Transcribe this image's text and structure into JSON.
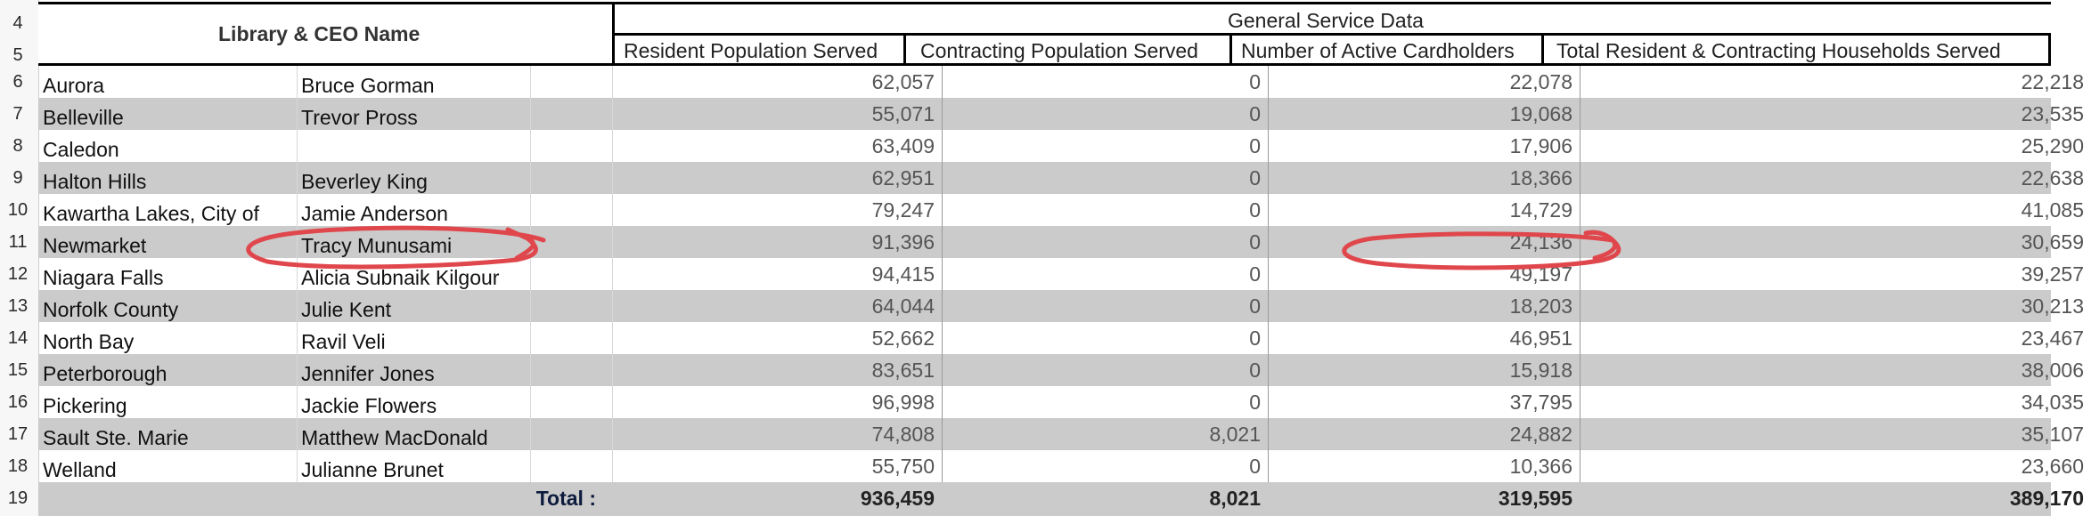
{
  "sheet": {
    "header": {
      "library_ceo_label": "Library & CEO Name",
      "group_label": "General Service Data",
      "columns": [
        "Resident Population Served",
        "Contracting Population Served",
        "Number of Active Cardholders",
        "Total Resident & Contracting Households Served"
      ],
      "row_numbers": [
        "4",
        "5"
      ]
    },
    "rows": [
      {
        "n": "6",
        "library": "Aurora",
        "ceo": "Bruce Gorman",
        "resident": "62,057",
        "contracting": "0",
        "cardholders": "22,078",
        "households": "22,218"
      },
      {
        "n": "7",
        "library": "Belleville",
        "ceo": "Trevor Pross",
        "resident": "55,071",
        "contracting": "0",
        "cardholders": "19,068",
        "households": "23,535"
      },
      {
        "n": "8",
        "library": "Caledon",
        "ceo": "",
        "resident": "63,409",
        "contracting": "0",
        "cardholders": "17,906",
        "households": "25,290"
      },
      {
        "n": "9",
        "library": "Halton Hills",
        "ceo": "Beverley King",
        "resident": "62,951",
        "contracting": "0",
        "cardholders": "18,366",
        "households": "22,638"
      },
      {
        "n": "10",
        "library": "Kawartha Lakes, City of",
        "ceo": "Jamie Anderson",
        "resident": "79,247",
        "contracting": "0",
        "cardholders": "14,729",
        "households": "41,085"
      },
      {
        "n": "11",
        "library": "Newmarket",
        "ceo": "Tracy Munusami",
        "resident": "91,396",
        "contracting": "0",
        "cardholders": "24,136",
        "households": "30,659"
      },
      {
        "n": "12",
        "library": "Niagara Falls",
        "ceo": "Alicia Subnaik Kilgour",
        "resident": "94,415",
        "contracting": "0",
        "cardholders": "49,197",
        "households": "39,257"
      },
      {
        "n": "13",
        "library": "Norfolk County",
        "ceo": "Julie Kent",
        "resident": "64,044",
        "contracting": "0",
        "cardholders": "18,203",
        "households": "30,213"
      },
      {
        "n": "14",
        "library": "North Bay",
        "ceo": "Ravil Veli",
        "resident": "52,662",
        "contracting": "0",
        "cardholders": "46,951",
        "households": "23,467"
      },
      {
        "n": "15",
        "library": "Peterborough",
        "ceo": "Jennifer Jones",
        "resident": "83,651",
        "contracting": "0",
        "cardholders": "15,918",
        "households": "38,006"
      },
      {
        "n": "16",
        "library": "Pickering",
        "ceo": "Jackie Flowers",
        "resident": "96,998",
        "contracting": "0",
        "cardholders": "37,795",
        "households": "34,035"
      },
      {
        "n": "17",
        "library": "Sault Ste. Marie",
        "ceo": "Matthew MacDonald",
        "resident": "74,808",
        "contracting": "8,021",
        "cardholders": "24,882",
        "households": "35,107"
      },
      {
        "n": "18",
        "library": "Welland",
        "ceo": "Julianne Brunet",
        "resident": "55,750",
        "contracting": "0",
        "cardholders": "10,366",
        "households": "23,660"
      }
    ],
    "total": {
      "n": "19",
      "label": "Total :",
      "resident": "936,459",
      "contracting": "8,021",
      "cardholders": "319,595",
      "households": "389,170"
    }
  },
  "colors": {
    "shaded_row": "#cbcbcb",
    "annotation": "#e0474c"
  }
}
